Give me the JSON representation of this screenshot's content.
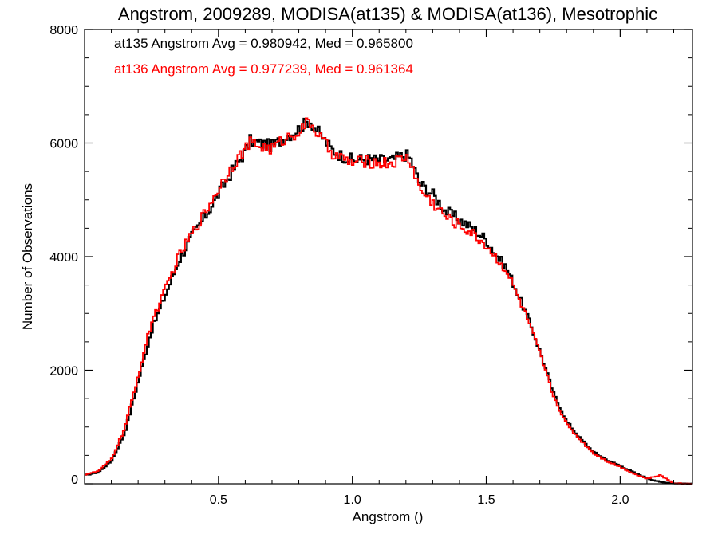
{
  "chart_data": {
    "type": "line",
    "title": "Angstrom, 2009289, MODISA(at135) & MODISA(at136), Mesotrophic",
    "xlabel": "Angstrom ()",
    "ylabel": "Number of Observations",
    "xlim": [
      0.0,
      2.27
    ],
    "ylim": [
      0,
      8000
    ],
    "grid": false,
    "legend_position": "top-left",
    "x_ticks": [
      0.5,
      1.0,
      1.5,
      2.0
    ],
    "x_tick_labels": [
      "0.5",
      "1.0",
      "1.5",
      "2.0"
    ],
    "y_ticks": [
      0,
      2000,
      4000,
      6000,
      8000
    ],
    "y_tick_labels": [
      "0",
      "2000",
      "4000",
      "6000",
      "8000"
    ],
    "step": "histogram",
    "series": [
      {
        "name": "at135",
        "label": "at135 Angstrom Avg = 0.980942, Med = 0.965800",
        "color": "#000000",
        "x": [
          0.0,
          0.05,
          0.1,
          0.15,
          0.2,
          0.25,
          0.3,
          0.35,
          0.4,
          0.45,
          0.5,
          0.55,
          0.6,
          0.62,
          0.65,
          0.7,
          0.75,
          0.8,
          0.84,
          0.88,
          0.92,
          0.95,
          1.0,
          1.05,
          1.1,
          1.15,
          1.2,
          1.22,
          1.25,
          1.3,
          1.35,
          1.4,
          1.45,
          1.5,
          1.55,
          1.57,
          1.6,
          1.65,
          1.7,
          1.75,
          1.8,
          1.85,
          1.9,
          1.95,
          2.0,
          2.05,
          2.1,
          2.15,
          2.2,
          2.27
        ],
        "values": [
          150,
          200,
          400,
          900,
          1800,
          2700,
          3300,
          3900,
          4350,
          4700,
          5100,
          5500,
          5850,
          6050,
          6000,
          5950,
          6100,
          6250,
          6400,
          6150,
          5900,
          5800,
          5700,
          5720,
          5700,
          5700,
          5800,
          5700,
          5300,
          5100,
          4800,
          4650,
          4500,
          4300,
          3950,
          3850,
          3550,
          3000,
          2350,
          1600,
          1100,
          800,
          560,
          420,
          320,
          200,
          100,
          30,
          10,
          0
        ]
      },
      {
        "name": "at136",
        "label": "at136 Angstrom Avg = 0.977239, Med = 0.961364",
        "color": "#ff0000",
        "x": [
          0.0,
          0.05,
          0.1,
          0.15,
          0.2,
          0.25,
          0.3,
          0.35,
          0.4,
          0.45,
          0.5,
          0.55,
          0.6,
          0.62,
          0.65,
          0.7,
          0.75,
          0.8,
          0.84,
          0.88,
          0.92,
          0.95,
          1.0,
          1.05,
          1.1,
          1.15,
          1.2,
          1.22,
          1.25,
          1.3,
          1.35,
          1.4,
          1.45,
          1.5,
          1.55,
          1.57,
          1.6,
          1.65,
          1.7,
          1.75,
          1.8,
          1.85,
          1.9,
          1.95,
          2.0,
          2.05,
          2.1,
          2.15,
          2.2,
          2.27
        ],
        "values": [
          160,
          220,
          430,
          980,
          1900,
          2850,
          3400,
          3980,
          4400,
          4780,
          5200,
          5600,
          5900,
          6000,
          5950,
          5900,
          6080,
          6200,
          6380,
          6100,
          5850,
          5750,
          5650,
          5680,
          5650,
          5650,
          5750,
          5650,
          5200,
          4950,
          4700,
          4550,
          4400,
          4200,
          3900,
          3800,
          3500,
          2950,
          2300,
          1550,
          1050,
          780,
          540,
          400,
          300,
          180,
          90,
          150,
          10,
          0
        ]
      }
    ]
  }
}
